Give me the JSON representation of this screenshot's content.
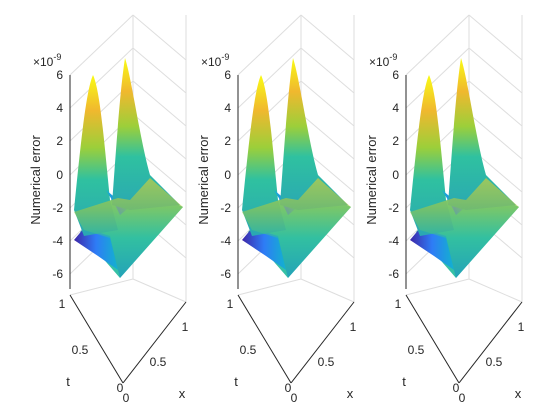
{
  "chart_data": [
    {
      "type": "surface",
      "zlabel": "Numerical error",
      "xlabel": "x",
      "ylabel": "t",
      "exponent_label": "×10",
      "exponent_power": "-9",
      "zlim": [
        -6,
        6
      ],
      "z_ticks": [
        "6",
        "4",
        "2",
        "0",
        "-2",
        "-4",
        "-6"
      ],
      "x_ticks": [
        "0",
        "0.5",
        "1"
      ],
      "t_ticks": [
        "0",
        "0.5",
        "1"
      ],
      "surface_peaks": [
        {
          "x": 0.25,
          "t": 1.0,
          "z": 5.2
        },
        {
          "x": 0.75,
          "t": 1.0,
          "z": 6.0
        }
      ],
      "surface_trough": {
        "x": 0.0,
        "t": 0.0,
        "z": -3.8
      }
    },
    {
      "type": "surface",
      "zlabel": "Numerical error",
      "xlabel": "x",
      "ylabel": "t",
      "exponent_label": "×10",
      "exponent_power": "-9",
      "zlim": [
        -6,
        6
      ],
      "z_ticks": [
        "6",
        "4",
        "2",
        "0",
        "-2",
        "-4",
        "-6"
      ],
      "x_ticks": [
        "0",
        "0.5",
        "1"
      ],
      "t_ticks": [
        "0",
        "0.5",
        "1"
      ],
      "surface_peaks": [
        {
          "x": 0.25,
          "t": 1.0,
          "z": 5.2
        },
        {
          "x": 0.75,
          "t": 1.0,
          "z": 6.0
        }
      ],
      "surface_trough": {
        "x": 0.0,
        "t": 0.0,
        "z": -3.8
      }
    },
    {
      "type": "surface",
      "zlabel": "Numerical error",
      "xlabel": "x",
      "ylabel": "t",
      "exponent_label": "×10",
      "exponent_power": "-9",
      "zlim": [
        -6,
        6
      ],
      "z_ticks": [
        "6",
        "4",
        "2",
        "0",
        "-2",
        "-4",
        "-6"
      ],
      "x_ticks": [
        "0",
        "0.5",
        "1"
      ],
      "t_ticks": [
        "0",
        "0.5",
        "1"
      ],
      "surface_peaks": [
        {
          "x": 0.25,
          "t": 1.0,
          "z": 5.2
        },
        {
          "x": 0.75,
          "t": 1.0,
          "z": 6.0
        }
      ],
      "surface_trough": {
        "x": 0.0,
        "t": 0.0,
        "z": -3.8
      }
    }
  ],
  "colors": {
    "colormap": [
      "#3e26a8",
      "#2e7cf6",
      "#12b2cf",
      "#2fc1a0",
      "#2ec68f",
      "#9ccf3a",
      "#f0b82e",
      "#f9fb15"
    ],
    "flat_plane": "#36c1a6",
    "grid": "#dedede",
    "axis": "#262626"
  }
}
